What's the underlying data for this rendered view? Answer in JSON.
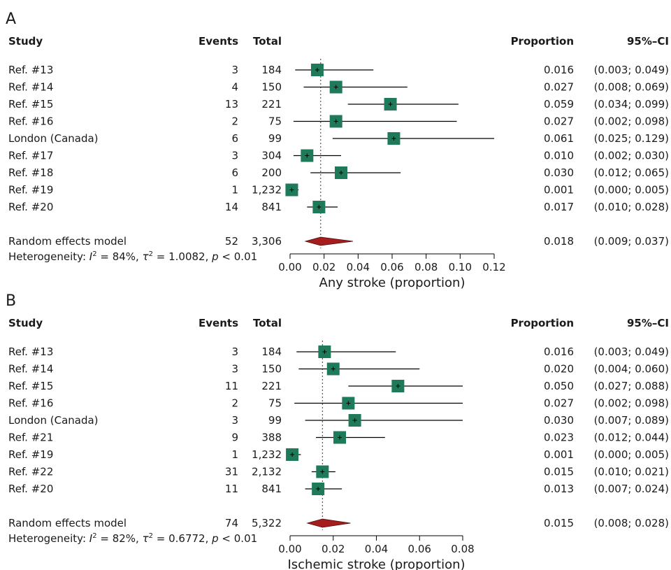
{
  "colors": {
    "box": "#1f7a5a",
    "diamond": "#a51d1d",
    "line": "#000000"
  },
  "columns": {
    "study": "Study",
    "events": "Events",
    "total": "Total",
    "proportion": "Proportion",
    "ci": "95%–CI"
  },
  "chart_data": [
    {
      "type": "forest",
      "panel": "A",
      "xlabel": "Any stroke (proportion)",
      "xlim": [
        0,
        0.12
      ],
      "xticks": [
        "0.00",
        "0.02",
        "0.04",
        "0.06",
        "0.08",
        "0.10",
        "0.12"
      ],
      "studies": [
        {
          "name": "Ref. #13",
          "events": "3",
          "total": "184",
          "prop": "0.016",
          "ci": "(0.003; 0.049)",
          "p": 0.016,
          "lo": 0.003,
          "hi": 0.049,
          "w": 1.0
        },
        {
          "name": "Ref. #14",
          "events": "4",
          "total": "150",
          "prop": "0.027",
          "ci": "(0.008; 0.069)",
          "p": 0.027,
          "lo": 0.008,
          "hi": 0.069,
          "w": 1.0
        },
        {
          "name": "Ref. #15",
          "events": "13",
          "total": "221",
          "prop": "0.059",
          "ci": "(0.034; 0.099)",
          "p": 0.059,
          "lo": 0.034,
          "hi": 0.099,
          "w": 1.0
        },
        {
          "name": "Ref. #16",
          "events": "2",
          "total": "75",
          "prop": "0.027",
          "ci": "(0.002; 0.098)",
          "p": 0.027,
          "lo": 0.002,
          "hi": 0.098,
          "w": 1.0
        },
        {
          "name": "London (Canada)",
          "events": "6",
          "total": "99",
          "prop": "0.061",
          "ci": "(0.025; 0.129)",
          "p": 0.061,
          "lo": 0.025,
          "hi": 0.129,
          "w": 1.0
        },
        {
          "name": "Ref. #17",
          "events": "3",
          "total": "304",
          "prop": "0.010",
          "ci": "(0.002; 0.030)",
          "p": 0.01,
          "lo": 0.002,
          "hi": 0.03,
          "w": 1.0
        },
        {
          "name": "Ref. #18",
          "events": "6",
          "total": "200",
          "prop": "0.030",
          "ci": "(0.012; 0.065)",
          "p": 0.03,
          "lo": 0.012,
          "hi": 0.065,
          "w": 1.0
        },
        {
          "name": "Ref. #19",
          "events": "1",
          "total": "1,232",
          "prop": "0.001",
          "ci": "(0.000; 0.005)",
          "p": 0.001,
          "lo": 0.0,
          "hi": 0.005,
          "w": 1.0
        },
        {
          "name": "Ref. #20",
          "events": "14",
          "total": "841",
          "prop": "0.017",
          "ci": "(0.010; 0.028)",
          "p": 0.017,
          "lo": 0.01,
          "hi": 0.028,
          "w": 1.0
        }
      ],
      "pooled": {
        "name": "Random effects model",
        "events": "52",
        "total": "3,306",
        "prop": "0.018",
        "ci": "(0.009; 0.037)",
        "p": 0.018,
        "lo": 0.009,
        "hi": 0.037
      },
      "heterogeneity": {
        "label": "Heterogeneity:",
        "i2": "84%",
        "tau2": "1.0082",
        "p": "p < 0.01"
      }
    },
    {
      "type": "forest",
      "panel": "B",
      "xlabel": "Ischemic stroke (proportion)",
      "xlim": [
        0,
        0.08
      ],
      "xticks": [
        "0.00",
        "0.02",
        "0.04",
        "0.06",
        "0.08"
      ],
      "studies": [
        {
          "name": "Ref. #13",
          "events": "3",
          "total": "184",
          "prop": "0.016",
          "ci": "(0.003; 0.049)",
          "p": 0.016,
          "lo": 0.003,
          "hi": 0.049,
          "w": 1.0
        },
        {
          "name": "Ref. #14",
          "events": "3",
          "total": "150",
          "prop": "0.020",
          "ci": "(0.004; 0.060)",
          "p": 0.02,
          "lo": 0.004,
          "hi": 0.06,
          "w": 1.0
        },
        {
          "name": "Ref. #15",
          "events": "11",
          "total": "221",
          "prop": "0.050",
          "ci": "(0.027; 0.088)",
          "p": 0.05,
          "lo": 0.027,
          "hi": 0.088,
          "w": 1.0
        },
        {
          "name": "Ref. #16",
          "events": "2",
          "total": "75",
          "prop": "0.027",
          "ci": "(0.002; 0.098)",
          "p": 0.027,
          "lo": 0.002,
          "hi": 0.098,
          "w": 1.0
        },
        {
          "name": "London (Canada)",
          "events": "3",
          "total": "99",
          "prop": "0.030",
          "ci": "(0.007; 0.089)",
          "p": 0.03,
          "lo": 0.007,
          "hi": 0.089,
          "w": 1.0
        },
        {
          "name": "Ref. #21",
          "events": "9",
          "total": "388",
          "prop": "0.023",
          "ci": "(0.012; 0.044)",
          "p": 0.023,
          "lo": 0.012,
          "hi": 0.044,
          "w": 1.0
        },
        {
          "name": "Ref. #19",
          "events": "1",
          "total": "1,232",
          "prop": "0.001",
          "ci": "(0.000; 0.005)",
          "p": 0.001,
          "lo": 0.0,
          "hi": 0.005,
          "w": 1.0
        },
        {
          "name": "Ref. #22",
          "events": "31",
          "total": "2,132",
          "prop": "0.015",
          "ci": "(0.010; 0.021)",
          "p": 0.015,
          "lo": 0.01,
          "hi": 0.021,
          "w": 1.0
        },
        {
          "name": "Ref. #20",
          "events": "11",
          "total": "841",
          "prop": "0.013",
          "ci": "(0.007; 0.024)",
          "p": 0.013,
          "lo": 0.007,
          "hi": 0.024,
          "w": 1.0
        }
      ],
      "pooled": {
        "name": "Random effects model",
        "events": "74",
        "total": "5,322",
        "prop": "0.015",
        "ci": "(0.008; 0.028)",
        "p": 0.015,
        "lo": 0.008,
        "hi": 0.028
      },
      "heterogeneity": {
        "label": "Heterogeneity:",
        "i2": "82%",
        "tau2": "0.6772",
        "p": "p < 0.01"
      }
    }
  ]
}
